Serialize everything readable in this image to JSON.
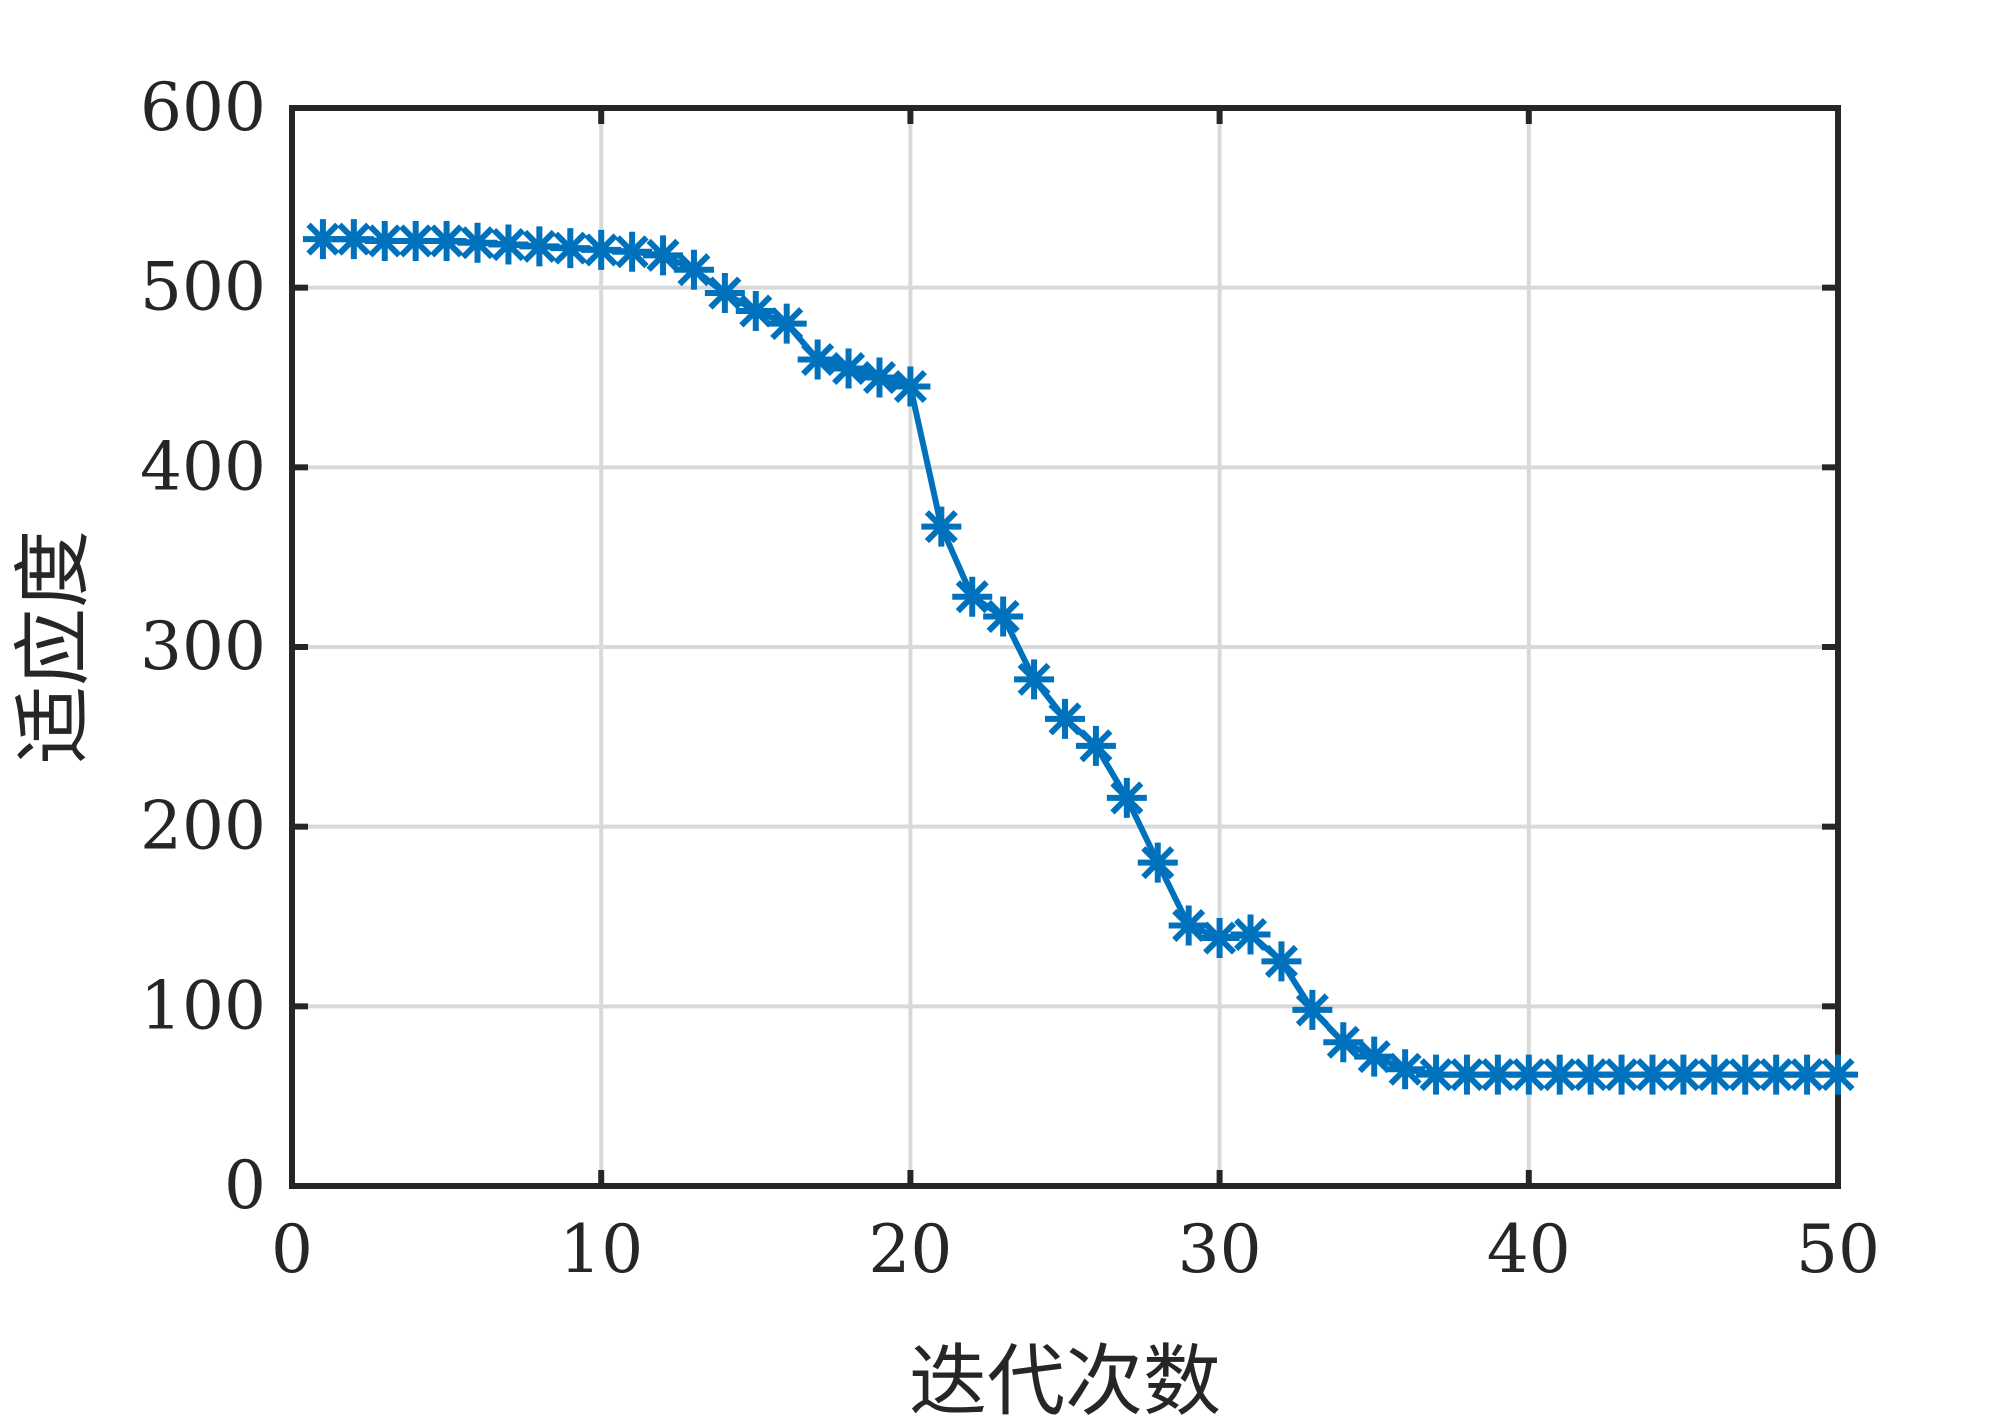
{
  "chart_data": {
    "type": "line",
    "title": "",
    "xlabel": "迭代次数",
    "ylabel": "适应度",
    "xlim": [
      0,
      50
    ],
    "ylim": [
      0,
      600
    ],
    "xticks": [
      0,
      10,
      20,
      30,
      40,
      50
    ],
    "yticks": [
      0,
      100,
      200,
      300,
      400,
      500,
      600
    ],
    "grid": true,
    "color": "#0072BD",
    "marker": "asterisk",
    "x": [
      1,
      2,
      3,
      4,
      5,
      6,
      7,
      8,
      9,
      10,
      11,
      12,
      13,
      14,
      15,
      16,
      17,
      18,
      19,
      20,
      21,
      22,
      23,
      24,
      25,
      26,
      27,
      28,
      29,
      30,
      31,
      32,
      33,
      34,
      35,
      36,
      37,
      38,
      39,
      40,
      41,
      42,
      43,
      44,
      45,
      46,
      47,
      48,
      49,
      50
    ],
    "y": [
      527,
      527,
      526,
      526,
      526,
      525,
      524,
      523,
      522,
      521,
      520,
      518,
      510,
      497,
      487,
      480,
      460,
      455,
      450,
      445,
      367,
      328,
      317,
      282,
      260,
      245,
      216,
      180,
      145,
      138,
      140,
      125,
      98,
      80,
      72,
      65,
      62,
      62,
      62,
      62,
      62,
      62,
      62,
      62,
      62,
      62,
      62,
      62,
      62,
      62
    ]
  }
}
